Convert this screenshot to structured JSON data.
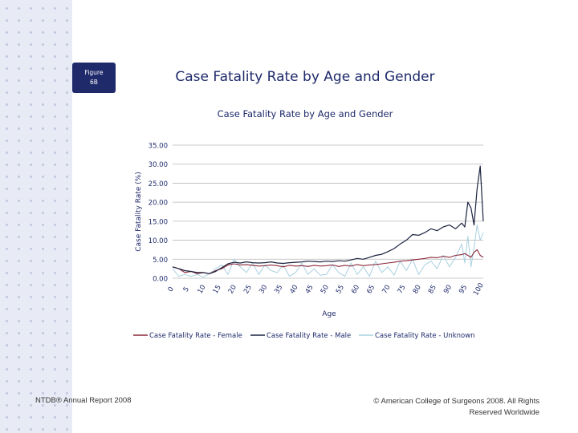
{
  "figure_badge": {
    "line1": "Figure",
    "line2": "6B"
  },
  "slide_title": "Case Fatality Rate by Age and Gender",
  "footer": {
    "left": "NTDB® Annual Report 2008",
    "right": "© American College of Surgeons 2008. All Rights Reserved Worldwide"
  },
  "colors": {
    "female": "#8b2a3a",
    "male": "#1c2340",
    "unknown": "#a9d0e0",
    "title": "#1f2a6b"
  },
  "chart_data": {
    "type": "line",
    "title": "Case Fatality Rate by Age and Gender",
    "xlabel": "Age",
    "ylabel": "Case Fatality Rate (%)",
    "ylim": [
      0,
      35
    ],
    "yticks": [
      "0.00",
      "5.00",
      "10.00",
      "15.00",
      "20.00",
      "25.00",
      "30.00",
      "35.00"
    ],
    "xticks": [
      "0",
      "5",
      "10",
      "15",
      "20",
      "25",
      "30",
      "35",
      "40",
      "45",
      "50",
      "55",
      "60",
      "65",
      "70",
      "75",
      "80",
      "85",
      "90",
      "95",
      "100"
    ],
    "xlim": [
      0,
      101
    ],
    "x": [
      0,
      2,
      4,
      6,
      8,
      10,
      12,
      14,
      16,
      18,
      20,
      22,
      24,
      26,
      28,
      30,
      32,
      34,
      36,
      38,
      40,
      42,
      44,
      46,
      48,
      50,
      52,
      54,
      56,
      58,
      60,
      62,
      64,
      66,
      68,
      70,
      72,
      74,
      76,
      78,
      80,
      82,
      84,
      86,
      88,
      90,
      92,
      94,
      95,
      96,
      97,
      98,
      99,
      100,
      101
    ],
    "series": [
      {
        "name": "Case Fatality Rate - Female",
        "values": [
          3.0,
          2.5,
          1.5,
          1.8,
          1.2,
          1.5,
          1.2,
          2.0,
          2.5,
          3.5,
          3.8,
          3.5,
          3.6,
          3.4,
          3.2,
          3.3,
          3.5,
          3.3,
          3.0,
          3.4,
          3.2,
          3.3,
          3.1,
          3.4,
          3.2,
          3.3,
          3.5,
          3.1,
          3.4,
          3.2,
          3.6,
          3.3,
          3.5,
          3.6,
          3.8,
          4.0,
          4.2,
          4.5,
          4.6,
          4.8,
          5.0,
          5.2,
          5.5,
          5.4,
          5.8,
          5.5,
          6.0,
          6.2,
          6.5,
          6.0,
          5.5,
          6.8,
          7.5,
          6.0,
          5.5
        ]
      },
      {
        "name": "Case Fatality Rate - Male",
        "values": [
          3.0,
          2.5,
          2.0,
          1.8,
          1.5,
          1.5,
          1.2,
          1.8,
          2.8,
          3.8,
          4.2,
          4.0,
          4.3,
          4.1,
          4.0,
          4.1,
          4.3,
          4.0,
          3.9,
          4.1,
          4.2,
          4.3,
          4.5,
          4.4,
          4.3,
          4.5,
          4.4,
          4.6,
          4.5,
          4.8,
          5.2,
          5.0,
          5.5,
          6.0,
          6.3,
          7.0,
          7.8,
          9.0,
          10.0,
          11.5,
          11.3,
          12.0,
          13.0,
          12.5,
          13.5,
          14.0,
          13.0,
          14.5,
          13.5,
          20.0,
          18.5,
          14.0,
          23.5,
          29.5,
          15.0
        ]
      },
      {
        "name": "Case Fatality Rate - Unknown",
        "values": [
          2.5,
          0.5,
          1.0,
          0.5,
          1.0,
          0.3,
          1.2,
          2.5,
          3.5,
          1.0,
          5.0,
          3.0,
          1.5,
          4.0,
          1.0,
          3.5,
          2.0,
          1.5,
          3.5,
          0.5,
          1.5,
          4.0,
          1.0,
          2.5,
          0.8,
          1.0,
          3.5,
          1.5,
          0.5,
          4.0,
          1.0,
          3.0,
          0.5,
          4.5,
          1.5,
          3.0,
          0.8,
          4.5,
          2.0,
          5.0,
          1.0,
          3.5,
          4.5,
          2.5,
          6.0,
          3.0,
          5.5,
          9.0,
          4.0,
          11.0,
          3.0,
          8.0,
          14.0,
          10.0,
          12.0
        ]
      }
    ],
    "legend": "bottom"
  }
}
